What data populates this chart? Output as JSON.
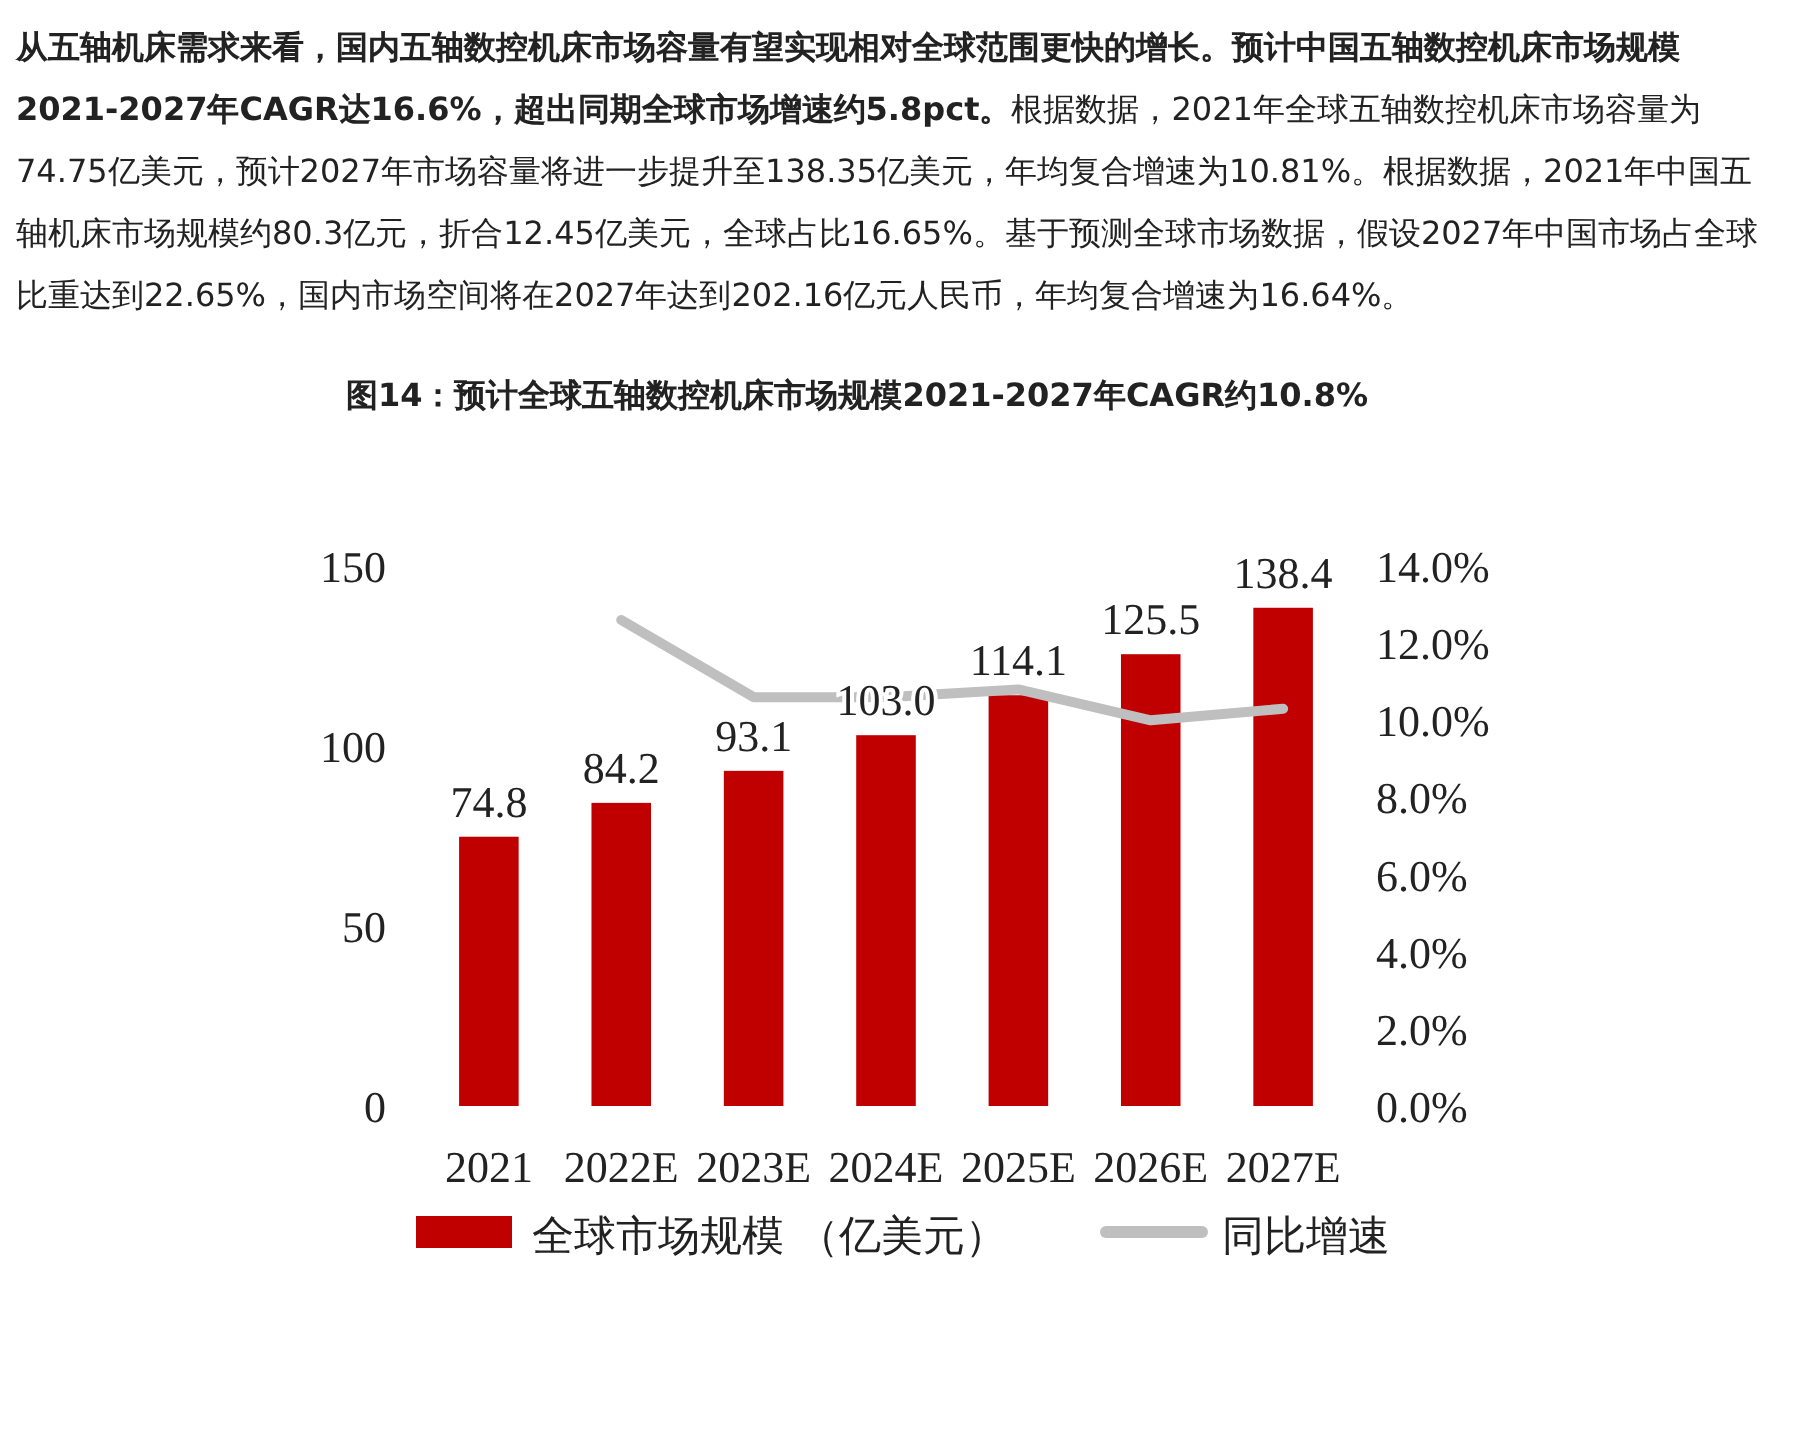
{
  "chart_data": {
    "type": "bar",
    "title": "图14：预计全球五轴数控机床市场规模2021-2027年CAGR约10.8%",
    "annotations": [
      "从五轴机床需求来看，国内五轴数控机床市场容量有望实现相对全球范围更快的增长。预计中国五轴数控机床市场规模2021-2027年CAGR达16.6%，超出同期全球市场增速约5.8pct。",
      "根据数据，2021年全球五轴数控机床市场容量为74.75亿美元，预计2027年市场容量将进一步提升至138.35亿美元，年均复合增速为10.81%。根据数据，2021年中国五轴机床市场规模约80.3亿元，折合12.45亿美元，全球占比16.65%。基于预测全球市场数据，假设2027年中国市场占全球比重达到22.65%，国内市场空间将在2027年达到202.16亿元人民币，年均复合增速为16.64%。"
    ],
    "categories": [
      "2021",
      "2022E",
      "2023E",
      "2024E",
      "2025E",
      "2026E",
      "2027E"
    ],
    "series": [
      {
        "name": "全球市场规模 （亿美元）",
        "color": "#c00000",
        "values": [
          74.8,
          84.2,
          93.1,
          103.0,
          114.1,
          125.5,
          138.4
        ],
        "value_labels": [
          "74.8",
          "84.2",
          "93.1",
          "103.0",
          "114.1",
          "125.5",
          "138.4"
        ]
      },
      {
        "name": "同比增速",
        "type": "line",
        "axis": "y2",
        "color": "#bfbfbf",
        "values": [
          null,
          12.6,
          10.6,
          10.6,
          10.8,
          10.0,
          10.3
        ]
      }
    ],
    "ylim": [
      0,
      150
    ],
    "yticks": [
      0,
      50,
      100,
      150
    ],
    "y2lim": [
      0,
      14
    ],
    "y2ticks": [
      {
        "value": 0,
        "label": "0.0%"
      },
      {
        "value": 2,
        "label": "2.0%"
      },
      {
        "value": 4,
        "label": "4.0%"
      },
      {
        "value": 6,
        "label": "6.0%"
      },
      {
        "value": 8,
        "label": "8.0%"
      },
      {
        "value": 10,
        "label": "10.0%"
      },
      {
        "value": 12,
        "label": "12.0%"
      },
      {
        "value": 14,
        "label": "14.0%"
      }
    ],
    "grid": false,
    "legend": "bottom",
    "marker": "none",
    "line_style": "solid"
  }
}
